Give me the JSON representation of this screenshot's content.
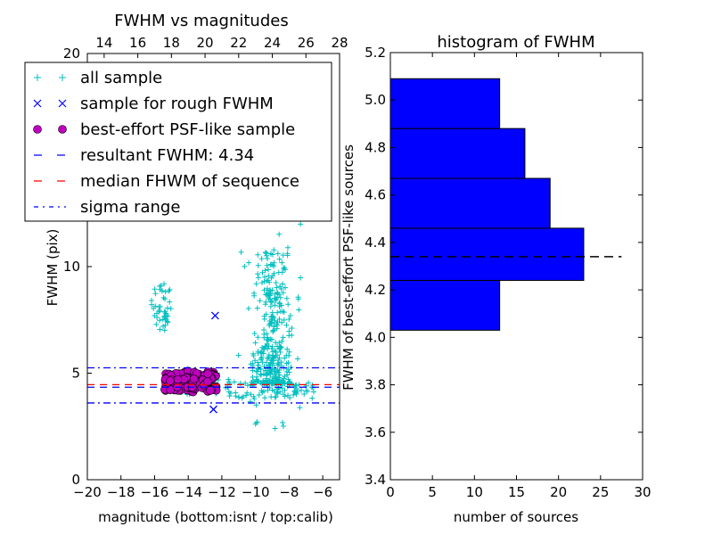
{
  "chart_data": [
    {
      "type": "scatter",
      "title": "FWHM vs magnitudes",
      "xlabel": "magnitude (bottom:isnt / top:calib)",
      "ylabel": "FWHM (pix)",
      "xlim": [
        -20,
        -5
      ],
      "ylim": [
        0,
        20
      ],
      "top_xlim": [
        13,
        28
      ],
      "xticks": [
        -20,
        -18,
        -16,
        -14,
        -12,
        -10,
        -8,
        -6
      ],
      "xtick_labels": [
        "−20",
        "−18",
        "−16",
        "−14",
        "−12",
        "−10",
        "−8",
        "−6"
      ],
      "yticks": [
        0,
        5,
        10,
        20
      ],
      "top_xticks": [
        14,
        16,
        18,
        20,
        22,
        24,
        26,
        28
      ],
      "legend": [
        {
          "label": "all sample",
          "marker": "+",
          "color": "#00bfbf"
        },
        {
          "label": "sample for rough FWHM",
          "marker": "x",
          "color": "#0000ff"
        },
        {
          "label": "best-effort PSF-like sample",
          "marker": "o",
          "color": "#bf00bf"
        },
        {
          "label": "resultant FWHM: 4.34",
          "marker": "dashed",
          "color": "#0000ff"
        },
        {
          "label": "median FHWM of sequence",
          "marker": "dashed",
          "color": "#ff0000"
        },
        {
          "label": "sigma range",
          "marker": "dashdot",
          "color": "#0000ff"
        }
      ],
      "legend_loc": "upper-left",
      "hlines": [
        {
          "name": "resultant",
          "y": 4.34,
          "color": "#0000ff",
          "style": "dashed"
        },
        {
          "name": "median",
          "y": 4.46,
          "color": "#ff0000",
          "style": "dashed"
        },
        {
          "name": "sigma-upper",
          "y": 5.25,
          "color": "#0000ff",
          "style": "dashdot"
        },
        {
          "name": "sigma-lower",
          "y": 3.6,
          "color": "#0000ff",
          "style": "dashdot"
        }
      ],
      "rough_points": [
        [
          -12.4,
          7.7
        ],
        [
          -12.5,
          3.3
        ]
      ],
      "clusters": [
        {
          "name": "all-sample-left-branch",
          "n": 45,
          "x": [
            -16.2,
            -15.0
          ],
          "y": [
            7.0,
            9.2
          ]
        },
        {
          "name": "all-sample-bright-ridge",
          "n": 55,
          "x": [
            -15.2,
            -11.5
          ],
          "y": [
            4.0,
            5.0
          ]
        },
        {
          "name": "all-sample-faint-ridge",
          "n": 80,
          "x": [
            -11.8,
            -6.5
          ],
          "y": [
            3.8,
            4.6
          ]
        },
        {
          "name": "all-sample-faint-cloud",
          "n": 330,
          "x": [
            -10.3,
            -7.8
          ],
          "y": [
            4.5,
            11.0
          ]
        },
        {
          "name": "all-sample-faint-outliers",
          "n": 40,
          "x": [
            -11.5,
            -7.2
          ],
          "y": [
            2.2,
            14.0
          ]
        },
        {
          "name": "psf-like-sample",
          "n": 130,
          "x": [
            -15.4,
            -12.3
          ],
          "y": [
            4.1,
            5.1
          ]
        }
      ]
    },
    {
      "type": "bar",
      "orientation": "horizontal",
      "title": "histogram of FWHM",
      "xlabel": "number of sources",
      "ylabel": "FWHM of best-effort PSF-like sources",
      "xlim": [
        0,
        30
      ],
      "ylim": [
        3.4,
        5.2
      ],
      "xticks": [
        0,
        5,
        10,
        15,
        20,
        25,
        30
      ],
      "yticks": [
        "3.4",
        "3.6",
        "3.8",
        "4.0",
        "4.2",
        "4.4",
        "4.6",
        "4.8",
        "5.0",
        "5.2"
      ],
      "bins": [
        {
          "y0": 4.03,
          "y1": 4.24,
          "count": 13
        },
        {
          "y0": 4.24,
          "y1": 4.46,
          "count": 23
        },
        {
          "y0": 4.46,
          "y1": 4.67,
          "count": 19
        },
        {
          "y0": 4.67,
          "y1": 4.88,
          "count": 16
        },
        {
          "y0": 4.88,
          "y1": 5.09,
          "count": 13
        }
      ],
      "bar_color": "#0000ff",
      "reference_line": {
        "y": 4.34,
        "x_range": [
          0,
          27.5
        ],
        "color": "#000000",
        "style": "dashed"
      }
    }
  ]
}
